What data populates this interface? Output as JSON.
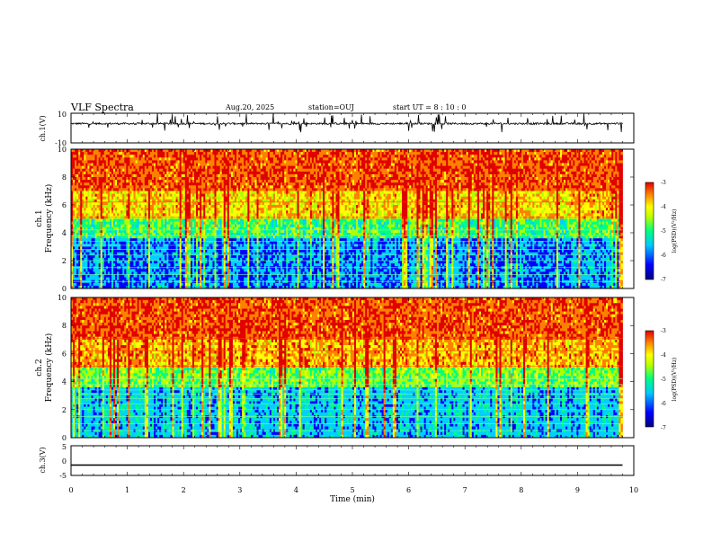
{
  "header": {
    "title": "VLF Spectra",
    "date": "Aug.20, 2025",
    "station": "station=OUJ",
    "start_ut": "start UT =  8 : 10 : 0"
  },
  "chart_data": [
    {
      "type": "line",
      "panel": "ch1-waveform",
      "ylabel": "ch.1(V)",
      "ylim": [
        -10,
        10
      ],
      "yticks": [
        "10",
        "-10"
      ],
      "xlim": [
        0,
        10
      ],
      "baseline": 3,
      "range_approx": [
        -3,
        10
      ]
    },
    {
      "type": "heatmap",
      "panel": "ch1-spectrogram",
      "ylabel_top": "ch.1",
      "ylabel": "Frequency (kHz)",
      "ylim": [
        0,
        10
      ],
      "yticks": [
        "0",
        "2",
        "4",
        "6",
        "8",
        "10"
      ],
      "xlim": [
        0,
        10
      ],
      "data_end_min": 9.8,
      "colorbar": {
        "label": "log(PSD)(V²/Hz)",
        "range": [
          -7,
          -3
        ],
        "ticks": [
          "-3",
          "-4",
          "-5",
          "-6",
          "-7"
        ]
      }
    },
    {
      "type": "heatmap",
      "panel": "ch2-spectrogram",
      "ylabel_top": "ch.2",
      "ylabel": "Frequency (kHz)",
      "ylim": [
        0,
        10
      ],
      "yticks": [
        "0",
        "2",
        "4",
        "6",
        "8",
        "10"
      ],
      "xlim": [
        0,
        10
      ],
      "data_end_min": 9.8,
      "colorbar": {
        "label": "log(PSD)(V²/Hz)",
        "range": [
          -7,
          -3
        ],
        "ticks": [
          "-3",
          "-4",
          "-5",
          "-6",
          "-7"
        ]
      }
    },
    {
      "type": "line",
      "panel": "ch3-waveform",
      "ylabel": "ch.3(V)",
      "ylim": [
        -5,
        5
      ],
      "yticks": [
        "5",
        "0",
        "-5"
      ],
      "xlim": [
        0,
        10
      ],
      "constant_value": -1.5
    }
  ],
  "xaxis": {
    "label": "Time (min)",
    "ticks": [
      "0",
      "1",
      "2",
      "3",
      "4",
      "5",
      "6",
      "7",
      "8",
      "9",
      "10"
    ]
  },
  "colormap": [
    "#00007f",
    "#0000ff",
    "#00d0ff",
    "#00ff80",
    "#b0ff00",
    "#ffff00",
    "#ff8000",
    "#e00000"
  ]
}
